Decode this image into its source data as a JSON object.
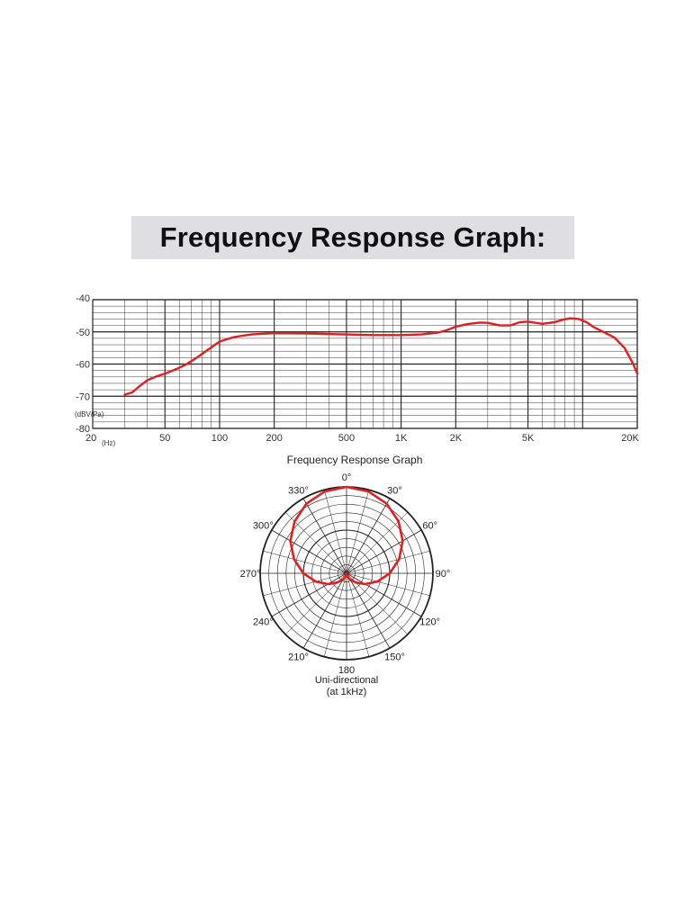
{
  "page_title": "Frequency Response Graph:",
  "chart_data": [
    {
      "type": "line",
      "title": "Frequency Response Graph",
      "xlabel": "(Hz)",
      "ylabel": "(dBV/Pa)",
      "xscale": "log",
      "xlim": [
        20,
        20000
      ],
      "ylim": [
        -80,
        -40
      ],
      "grid": true,
      "x_tick_labels": [
        "20",
        "50",
        "100",
        "200",
        "500",
        "1K",
        "2K",
        "5K",
        "20K"
      ],
      "x_ticks": [
        20,
        50,
        100,
        200,
        500,
        1000,
        2000,
        5000,
        20000
      ],
      "y_ticks": [
        -40,
        -50,
        -60,
        -70,
        -80
      ],
      "y_tick_labels": [
        "-40",
        "-50",
        "-60",
        "-70",
        "-80"
      ],
      "line_color": "#e02020",
      "series": [
        {
          "x": [
            30,
            33,
            36,
            40,
            45,
            50,
            58,
            65,
            75,
            85,
            100,
            120,
            150,
            200,
            300,
            500,
            700,
            1000,
            1300,
            1600,
            1800,
            2000,
            2300,
            2700,
            3000,
            3500,
            4000,
            4500,
            5000,
            5500,
            6000,
            7000,
            7800,
            8500,
            9500,
            10500,
            11500,
            13000,
            15000,
            17000,
            19000,
            20000
          ],
          "y": [
            -69.5,
            -68.8,
            -67.0,
            -65.0,
            -63.8,
            -63.0,
            -61.5,
            -60.2,
            -58.0,
            -55.8,
            -53.0,
            -51.6,
            -50.8,
            -50.4,
            -50.5,
            -50.8,
            -51.0,
            -51.0,
            -50.8,
            -50.2,
            -49.4,
            -48.4,
            -47.6,
            -47.1,
            -47.2,
            -48.0,
            -48.0,
            -47.0,
            -46.8,
            -47.2,
            -47.5,
            -47.0,
            -46.2,
            -45.8,
            -46.0,
            -47.0,
            -48.5,
            -50.0,
            -51.8,
            -55.0,
            -60.0,
            -63.0
          ]
        }
      ]
    },
    {
      "type": "polar",
      "title": "Uni-directional",
      "subtitle": "(at 1kHz)",
      "angle_labels": [
        "0°",
        "30°",
        "60°",
        "90°",
        "120°",
        "150°",
        "180",
        "210°",
        "240°",
        "270°",
        "300°",
        "330°"
      ],
      "pattern": "cardioid",
      "line_color": "#e02020",
      "angles_deg": [
        0,
        15,
        30,
        45,
        60,
        75,
        90,
        105,
        120,
        135,
        150,
        165,
        180
      ],
      "relative_level": [
        1.0,
        0.98,
        0.93,
        0.85,
        0.75,
        0.63,
        0.5,
        0.37,
        0.25,
        0.15,
        0.08,
        0.03,
        0.0
      ]
    }
  ]
}
